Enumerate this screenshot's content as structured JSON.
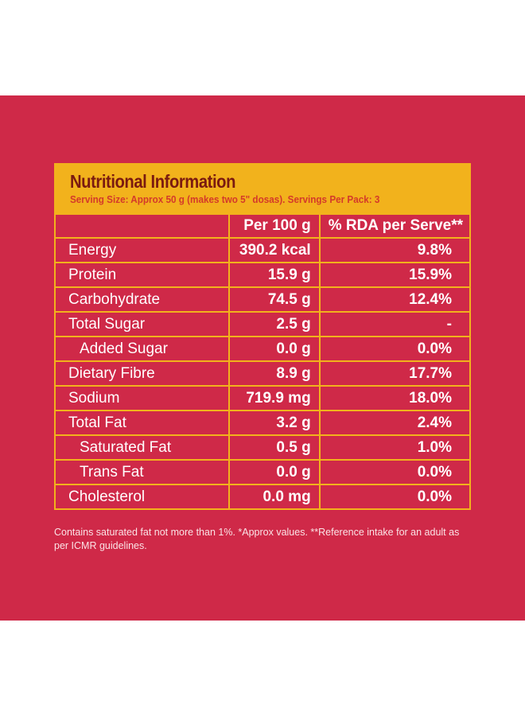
{
  "title": "Nutritional Information",
  "serving": "Serving Size: Approx 50 g (makes two 5\" dosas). Servings Per Pack: 3",
  "columns": [
    "",
    "Per 100 g",
    "% RDA per Serve**"
  ],
  "rows": [
    {
      "name": "Energy",
      "per100": "390.2 kcal",
      "rda": "9.8%",
      "indent": false
    },
    {
      "name": "Protein",
      "per100": "15.9 g",
      "rda": "15.9%",
      "indent": false
    },
    {
      "name": "Carbohydrate",
      "per100": "74.5 g",
      "rda": "12.4%",
      "indent": false
    },
    {
      "name": "Total Sugar",
      "per100": "2.5 g",
      "rda": "-",
      "indent": false
    },
    {
      "name": "Added Sugar",
      "per100": "0.0 g",
      "rda": "0.0%",
      "indent": true
    },
    {
      "name": "Dietary Fibre",
      "per100": "8.9 g",
      "rda": "17.7%",
      "indent": false
    },
    {
      "name": "Sodium",
      "per100": "719.9 mg",
      "rda": "18.0%",
      "indent": false
    },
    {
      "name": "Total Fat",
      "per100": "3.2 g",
      "rda": "2.4%",
      "indent": false
    },
    {
      "name": "Saturated Fat",
      "per100": "0.5 g",
      "rda": "1.0%",
      "indent": true
    },
    {
      "name": "Trans Fat",
      "per100": "0.0 g",
      "rda": "0.0%",
      "indent": true
    },
    {
      "name": "Cholesterol",
      "per100": "0.0 mg",
      "rda": "0.0%",
      "indent": false
    }
  ],
  "footnote": "Contains saturated fat not more than 1%. *Approx values. **Reference intake for an adult as per ICMR guidelines.",
  "colors": {
    "background": "#cf2948",
    "accent": "#f2b21c",
    "title": "#7a1a10"
  }
}
